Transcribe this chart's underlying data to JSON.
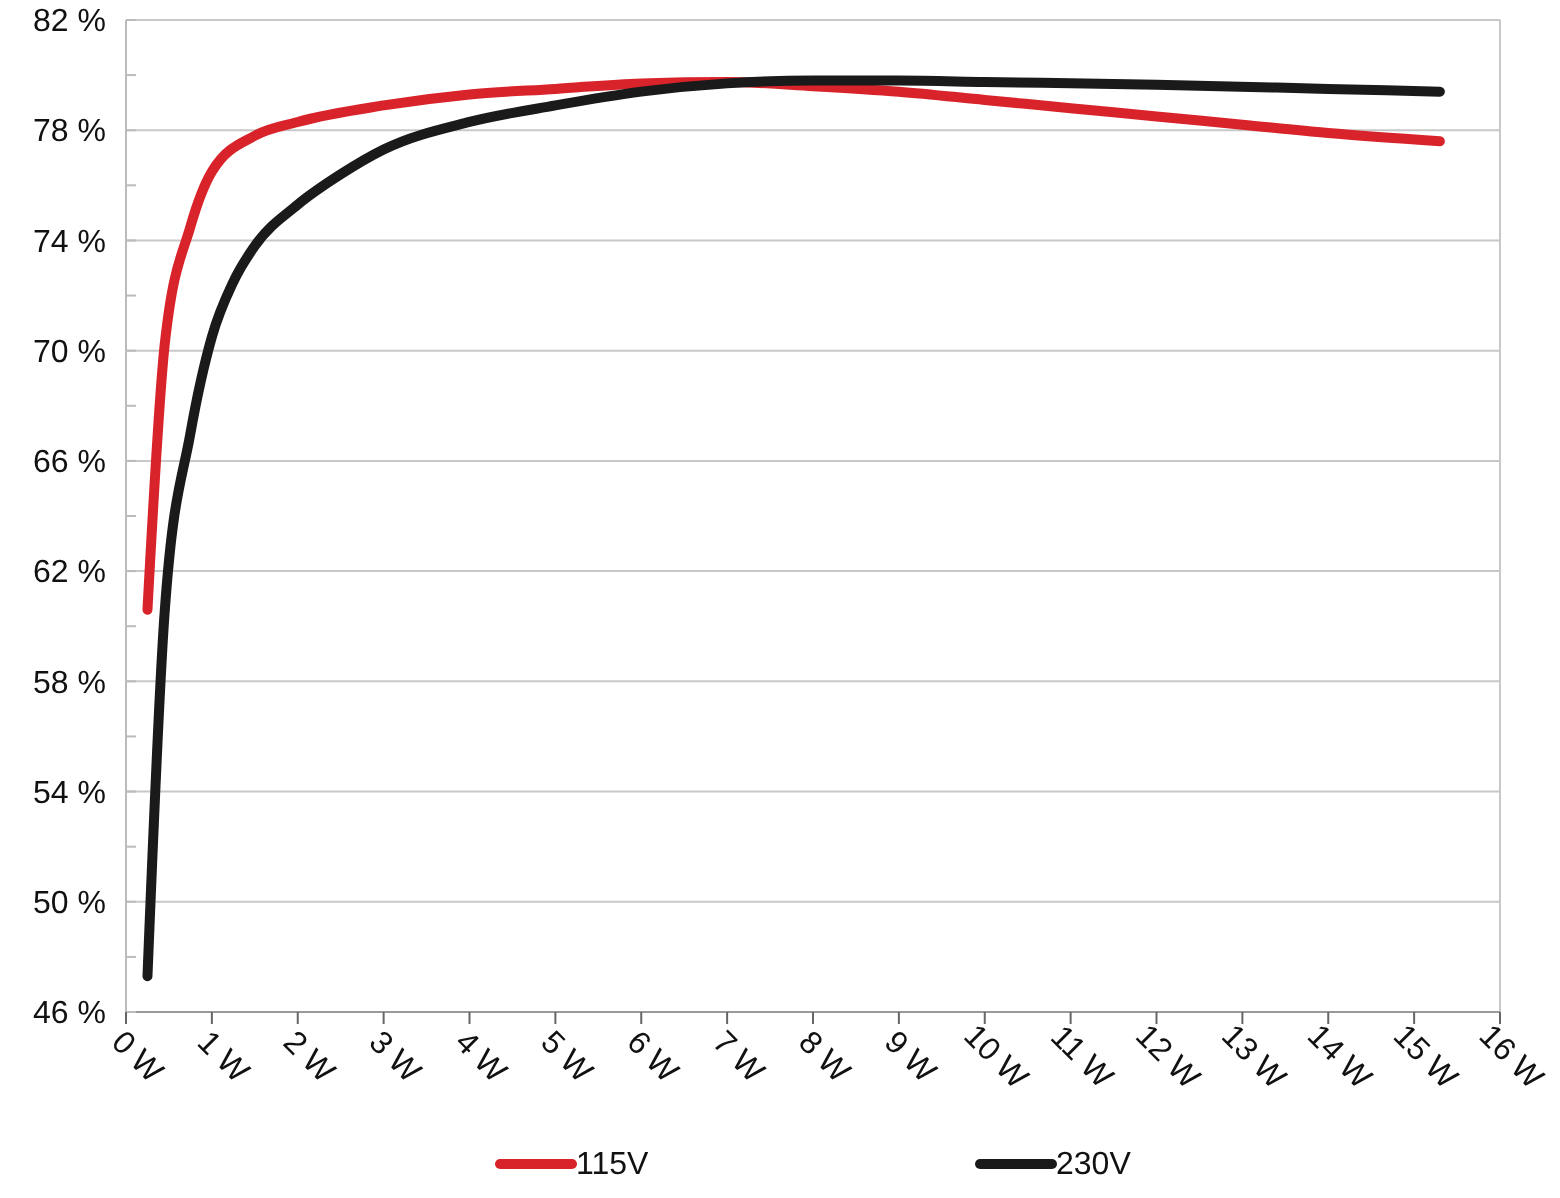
{
  "chart_data": {
    "type": "line",
    "xlim": [
      0,
      16
    ],
    "xticks": [
      {
        "value": 0,
        "label": "0 W"
      },
      {
        "value": 1,
        "label": "1 W"
      },
      {
        "value": 2,
        "label": "2 W"
      },
      {
        "value": 3,
        "label": "3 W"
      },
      {
        "value": 4,
        "label": "4 W"
      },
      {
        "value": 5,
        "label": "5 W"
      },
      {
        "value": 6,
        "label": "6 W"
      },
      {
        "value": 7,
        "label": "7 W"
      },
      {
        "value": 8,
        "label": "8 W"
      },
      {
        "value": 9,
        "label": "9 W"
      },
      {
        "value": 10,
        "label": "10 W"
      },
      {
        "value": 11,
        "label": "11 W"
      },
      {
        "value": 12,
        "label": "12 W"
      },
      {
        "value": 13,
        "label": "13 W"
      },
      {
        "value": 14,
        "label": "14 W"
      },
      {
        "value": 15,
        "label": "15 W"
      },
      {
        "value": 16,
        "label": "16 W"
      }
    ],
    "ylim": [
      46,
      82
    ],
    "yticks": [
      {
        "value": 46,
        "label": "46 %"
      },
      {
        "value": 48,
        "label": null
      },
      {
        "value": 50,
        "label": "50 %"
      },
      {
        "value": 52,
        "label": null
      },
      {
        "value": 54,
        "label": "54 %"
      },
      {
        "value": 56,
        "label": null
      },
      {
        "value": 58,
        "label": "58 %"
      },
      {
        "value": 60,
        "label": null
      },
      {
        "value": 62,
        "label": "62 %"
      },
      {
        "value": 64,
        "label": null
      },
      {
        "value": 66,
        "label": "66 %"
      },
      {
        "value": 68,
        "label": null
      },
      {
        "value": 70,
        "label": "70 %"
      },
      {
        "value": 72,
        "label": null
      },
      {
        "value": 74,
        "label": "74 %"
      },
      {
        "value": 76,
        "label": null
      },
      {
        "value": 78,
        "label": "78 %"
      },
      {
        "value": 80,
        "label": null
      },
      {
        "value": 82,
        "label": "82 %"
      }
    ],
    "grid": "y",
    "legend": "bottom",
    "marker": "none",
    "line_style": "solid",
    "series": [
      {
        "name": "115V",
        "color": "#d9232a",
        "x": [
          0.25,
          0.45,
          0.75,
          1,
          1.5,
          2,
          3,
          4,
          5,
          6,
          7,
          8,
          9,
          10,
          11,
          12,
          13,
          14,
          15.3
        ],
        "values": [
          60.6,
          70.2,
          74.5,
          76.5,
          77.8,
          78.3,
          78.9,
          79.3,
          79.5,
          79.7,
          79.75,
          79.6,
          79.4,
          79.1,
          78.8,
          78.5,
          78.2,
          77.9,
          77.6
        ]
      },
      {
        "name": "230V",
        "color": "#1a1a1a",
        "x": [
          0.25,
          0.45,
          0.75,
          1,
          1.25,
          1.5,
          2,
          2.5,
          3,
          4,
          5,
          6,
          7,
          8,
          9,
          10,
          12,
          14,
          15.3
        ],
        "values": [
          47.3,
          60.5,
          67,
          70.5,
          72.5,
          73.8,
          75.3,
          76.4,
          77.3,
          78.3,
          78.9,
          79.4,
          79.7,
          79.8,
          79.8,
          79.75,
          79.65,
          79.5,
          79.4
        ]
      }
    ]
  }
}
